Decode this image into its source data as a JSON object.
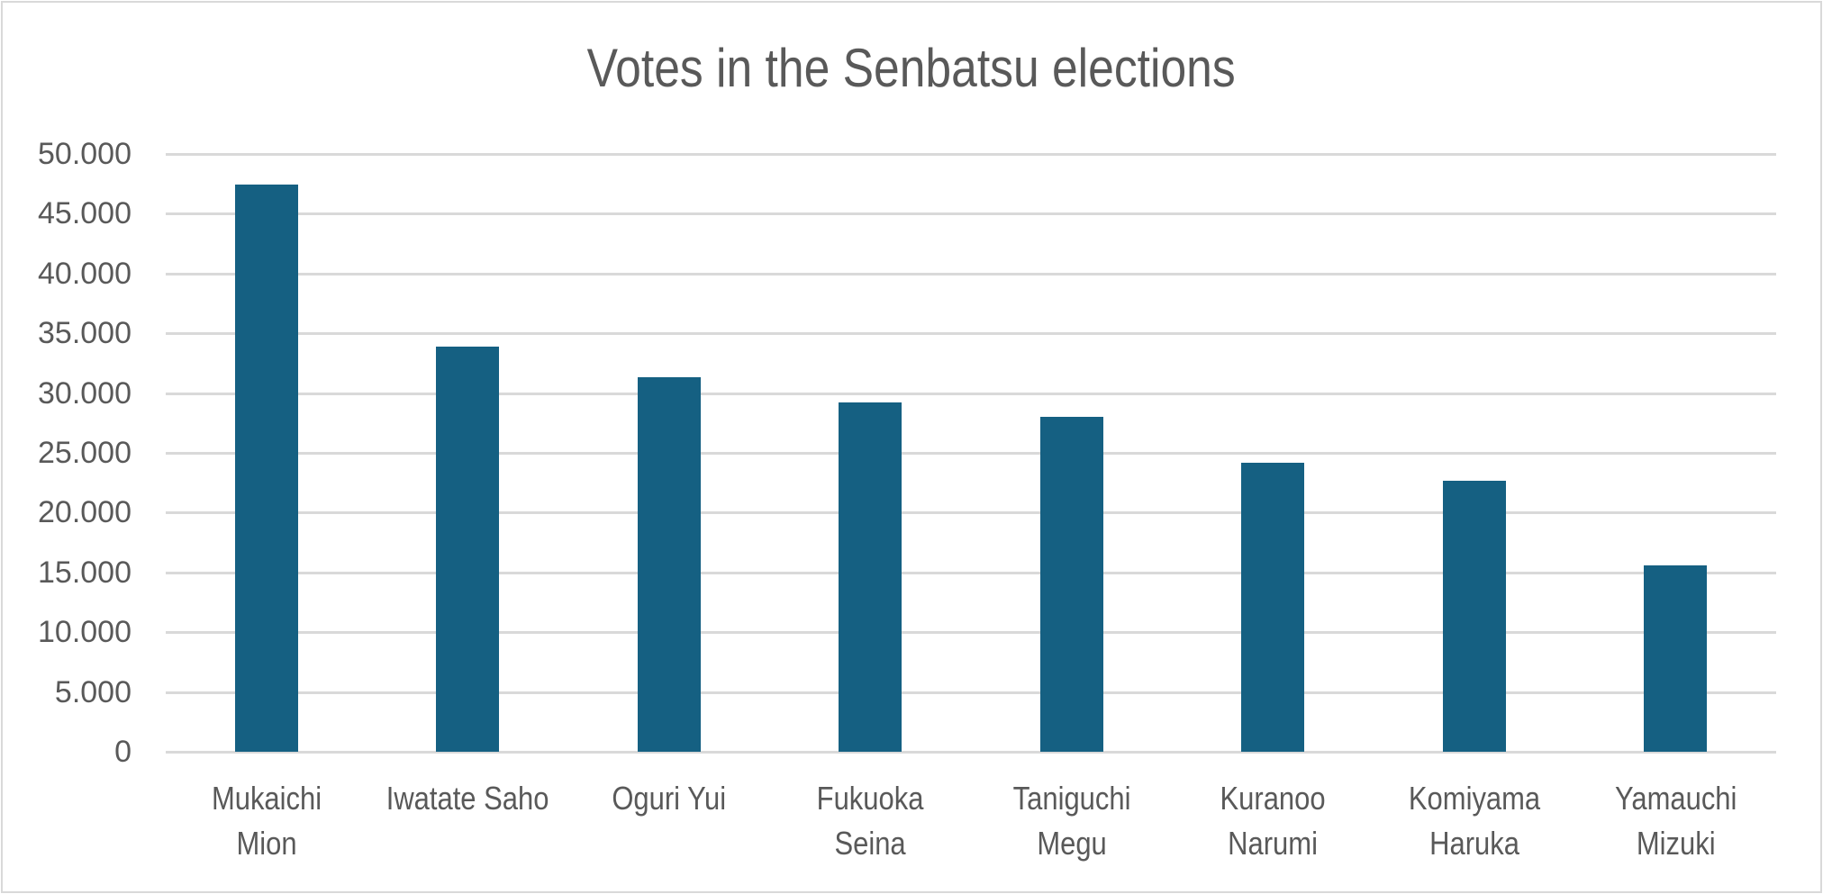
{
  "chart_data": {
    "type": "bar",
    "title": "Votes in the Senbatsu elections",
    "xlabel": "",
    "ylabel": "",
    "categories": [
      "Mukaichi Mion",
      "Iwatate Saho",
      "Oguri Yui",
      "Fukuoka Seina",
      "Taniguchi Megu",
      "Kuranoo Narumi",
      "Komiyama Haruka",
      "Yamauchi Mizuki"
    ],
    "category_label_lines": [
      "Mukaichi\nMion",
      "Iwatate Saho",
      "Oguri Yui",
      "Fukuoka\nSeina",
      "Taniguchi\nMegu",
      "Kuranoo\nNarumi",
      "Komiyama\nHaruka",
      "Yamauchi\nMizuki"
    ],
    "values": [
      47450,
      33850,
      31300,
      29200,
      28000,
      24200,
      22700,
      15600
    ],
    "ylim": [
      0,
      50000
    ],
    "yticks": [
      0,
      5000,
      10000,
      15000,
      20000,
      25000,
      30000,
      35000,
      40000,
      45000,
      50000
    ],
    "ytick_labels": [
      "0",
      "5.000",
      "10.000",
      "15.000",
      "20.000",
      "25.000",
      "30.000",
      "35.000",
      "40.000",
      "45.000",
      "50.000"
    ],
    "grid": true,
    "legend": "none",
    "bar_color": "#156082",
    "gridline_color": "#D9D9D9",
    "text_color": "#595959",
    "border_color": "#D9D9D9"
  }
}
